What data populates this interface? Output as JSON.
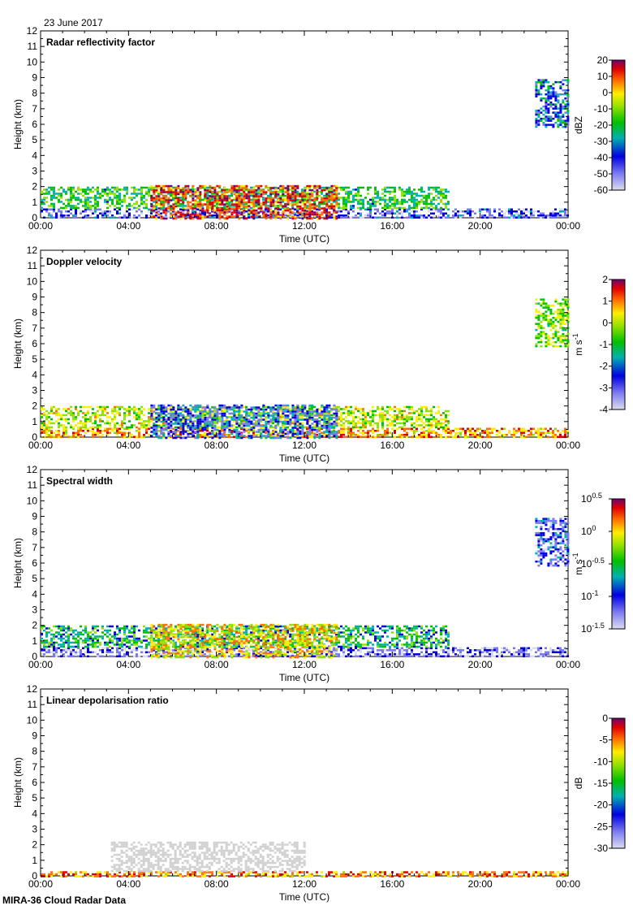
{
  "header": {
    "date": "23 June 2017"
  },
  "footer": {
    "label": "MIRA-36 Cloud Radar Data"
  },
  "chart_data": [
    {
      "type": "heatmap",
      "title": "Radar reflectivity factor",
      "xlabel": "Time (UTC)",
      "ylabel": "Height (km)",
      "x_ticks": [
        "00:00",
        "04:00",
        "08:00",
        "12:00",
        "16:00",
        "20:00",
        "00:00"
      ],
      "xlim": [
        0,
        24
      ],
      "y_ticks": [
        "0",
        "1",
        "2",
        "3",
        "4",
        "5",
        "6",
        "7",
        "8",
        "9",
        "10",
        "11",
        "12"
      ],
      "ylim": [
        0,
        12
      ],
      "colorbar": {
        "label": "dBZ",
        "ticks": [
          "20",
          "10",
          "0",
          "-10",
          "-20",
          "-30",
          "-40",
          "-50",
          "-60"
        ],
        "range": [
          -60,
          20
        ]
      },
      "features": [
        {
          "name": "low-level echo",
          "t_start": 0.0,
          "t_end": 24.0,
          "h_bottom": 0.0,
          "h_top": 0.6,
          "value": -45
        },
        {
          "name": "boundary-layer cloud",
          "t_start": 0.0,
          "t_end": 18.6,
          "h_bottom": 0.6,
          "h_top": 2.0,
          "value": -25
        },
        {
          "name": "convective cells",
          "t_start": 5.0,
          "t_end": 13.5,
          "h_bottom": 0.0,
          "h_top": 2.1,
          "value": 5
        },
        {
          "name": "upper cloud",
          "t_start": 22.5,
          "t_end": 24.0,
          "h_bottom": 5.8,
          "h_top": 8.9,
          "value": -35
        }
      ]
    },
    {
      "type": "heatmap",
      "title": "Doppler velocity",
      "xlabel": "Time (UTC)",
      "ylabel": "Height (km)",
      "x_ticks": [
        "00:00",
        "04:00",
        "08:00",
        "12:00",
        "16:00",
        "20:00",
        "00:00"
      ],
      "xlim": [
        0,
        24
      ],
      "y_ticks": [
        "0",
        "1",
        "2",
        "3",
        "4",
        "5",
        "6",
        "7",
        "8",
        "9",
        "10",
        "11",
        "12"
      ],
      "ylim": [
        0,
        12
      ],
      "colorbar": {
        "label": "m s",
        "label_sup": "-1",
        "ticks": [
          "2",
          "1",
          "0",
          "-1",
          "-2",
          "-3",
          "-4"
        ],
        "range": [
          -4,
          2
        ]
      },
      "features": [
        {
          "name": "low-level echo",
          "t_start": 0.0,
          "t_end": 24.0,
          "h_bottom": 0.0,
          "h_top": 0.6,
          "value": 0.3
        },
        {
          "name": "boundary-layer cloud",
          "t_start": 0.0,
          "t_end": 18.6,
          "h_bottom": 0.6,
          "h_top": 2.0,
          "value": -0.5
        },
        {
          "name": "convective cells",
          "t_start": 5.0,
          "t_end": 13.5,
          "h_bottom": 0.0,
          "h_top": 2.1,
          "value": -2.5
        },
        {
          "name": "upper cloud",
          "t_start": 22.5,
          "t_end": 24.0,
          "h_bottom": 5.8,
          "h_top": 8.9,
          "value": -0.8
        }
      ]
    },
    {
      "type": "heatmap",
      "title": "Spectral width",
      "xlabel": "Time (UTC)",
      "ylabel": "Height (km)",
      "x_ticks": [
        "00:00",
        "04:00",
        "08:00",
        "12:00",
        "16:00",
        "20:00",
        "00:00"
      ],
      "xlim": [
        0,
        24
      ],
      "y_ticks": [
        "0",
        "1",
        "2",
        "3",
        "4",
        "5",
        "6",
        "7",
        "8",
        "9",
        "10",
        "11",
        "12"
      ],
      "ylim": [
        0,
        12
      ],
      "colorbar": {
        "label": "m s",
        "label_sup": "-1",
        "log_base": "10",
        "ticks": [
          {
            "base": "10",
            "exp": "0.5"
          },
          {
            "base": "10",
            "exp": "0"
          },
          {
            "base": "10",
            "exp": "-0.5"
          },
          {
            "base": "10",
            "exp": "-1"
          },
          {
            "base": "10",
            "exp": "-1.5"
          }
        ],
        "range": [
          -1.5,
          0.5
        ]
      },
      "features": [
        {
          "name": "low-level echo",
          "t_start": 0.0,
          "t_end": 24.0,
          "h_bottom": 0.0,
          "h_top": 0.6,
          "value": -1.2
        },
        {
          "name": "boundary-layer cloud",
          "t_start": 0.0,
          "t_end": 18.6,
          "h_bottom": 0.6,
          "h_top": 2.0,
          "value": -0.7
        },
        {
          "name": "convective cells",
          "t_start": 5.0,
          "t_end": 13.5,
          "h_bottom": 0.0,
          "h_top": 2.1,
          "value": -0.2
        },
        {
          "name": "upper cloud",
          "t_start": 22.5,
          "t_end": 24.0,
          "h_bottom": 5.8,
          "h_top": 8.9,
          "value": -1.1
        }
      ]
    },
    {
      "type": "heatmap",
      "title": "Linear depolarisation ratio",
      "xlabel": "Time (UTC)",
      "ylabel": "Height (km)",
      "x_ticks": [
        "00:00",
        "04:00",
        "08:00",
        "12:00",
        "16:00",
        "20:00",
        "00:00"
      ],
      "xlim": [
        0,
        24
      ],
      "y_ticks": [
        "0",
        "1",
        "2",
        "3",
        "4",
        "5",
        "6",
        "7",
        "8",
        "9",
        "10",
        "11",
        "12"
      ],
      "ylim": [
        0,
        12
      ],
      "colorbar": {
        "label": "dB",
        "ticks": [
          "0",
          "-5",
          "-10",
          "-15",
          "-20",
          "-25",
          "-30"
        ],
        "range": [
          -30,
          0
        ]
      },
      "features": [
        {
          "name": "near-surface depolarisation",
          "t_start": 0.0,
          "t_end": 24.0,
          "h_bottom": 0.0,
          "h_top": 0.3,
          "value": -8
        },
        {
          "name": "grey masked cloud",
          "t_start": 3.2,
          "t_end": 12.0,
          "h_bottom": 0.3,
          "h_top": 2.2,
          "value": null
        }
      ]
    }
  ]
}
